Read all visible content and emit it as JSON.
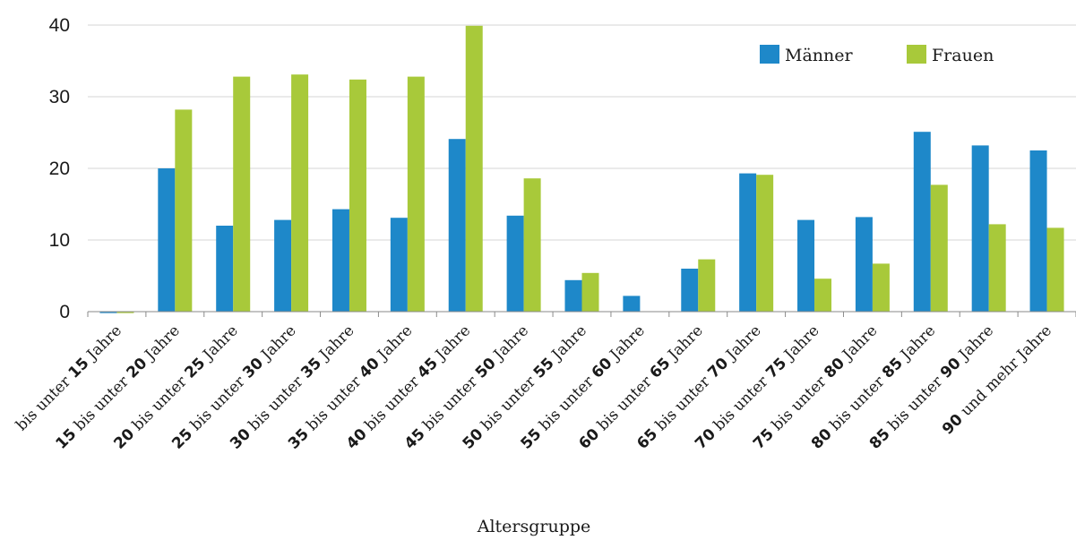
{
  "chart_data": {
    "type": "bar",
    "title": "",
    "xlabel": "Altersgruppe",
    "ylabel": "",
    "ylim": [
      0,
      40
    ],
    "yticks": [
      0,
      10,
      20,
      30,
      40
    ],
    "grid": "horizontal",
    "legend_position": "top-right",
    "categories": [
      {
        "num": "",
        "pre": "bis unter ",
        "num2": "15",
        "post": " Jahre"
      },
      {
        "num": "15",
        "pre": " bis unter ",
        "num2": "20",
        "post": " Jahre"
      },
      {
        "num": "20",
        "pre": " bis unter ",
        "num2": "25",
        "post": " Jahre"
      },
      {
        "num": "25",
        "pre": " bis unter ",
        "num2": "30",
        "post": " Jahre"
      },
      {
        "num": "30",
        "pre": " bis unter ",
        "num2": "35",
        "post": " Jahre"
      },
      {
        "num": "35",
        "pre": " bis unter ",
        "num2": "40",
        "post": " Jahre"
      },
      {
        "num": "40",
        "pre": " bis unter ",
        "num2": "45",
        "post": " Jahre"
      },
      {
        "num": "45",
        "pre": " bis unter ",
        "num2": "50",
        "post": " Jahre"
      },
      {
        "num": "50",
        "pre": " bis unter ",
        "num2": "55",
        "post": " Jahre"
      },
      {
        "num": "55",
        "pre": " bis unter ",
        "num2": "60",
        "post": " Jahre"
      },
      {
        "num": "60",
        "pre": " bis unter ",
        "num2": "65",
        "post": " Jahre"
      },
      {
        "num": "65",
        "pre": " bis unter ",
        "num2": "70",
        "post": " Jahre"
      },
      {
        "num": "70",
        "pre": " bis unter ",
        "num2": "75",
        "post": " Jahre"
      },
      {
        "num": "75",
        "pre": " bis unter ",
        "num2": "80",
        "post": " Jahre"
      },
      {
        "num": "80",
        "pre": " bis unter ",
        "num2": "85",
        "post": " Jahre"
      },
      {
        "num": "85",
        "pre": " bis unter ",
        "num2": "90",
        "post": " Jahre"
      },
      {
        "num": "90",
        "pre": " und mehr Jahre",
        "num2": "",
        "post": ""
      }
    ],
    "series": [
      {
        "name": "Männer",
        "color": "#1e88c9",
        "values": [
          -0.2,
          20.0,
          12.0,
          12.8,
          14.3,
          13.1,
          24.1,
          13.4,
          4.4,
          2.2,
          6.0,
          19.3,
          12.8,
          13.2,
          25.1,
          23.2,
          22.5
        ]
      },
      {
        "name": "Frauen",
        "color": "#a8c93a",
        "values": [
          -0.2,
          28.2,
          32.8,
          33.1,
          32.4,
          32.8,
          39.9,
          18.6,
          5.4,
          0,
          7.3,
          19.1,
          4.6,
          6.7,
          17.7,
          12.2,
          11.7
        ]
      }
    ]
  }
}
